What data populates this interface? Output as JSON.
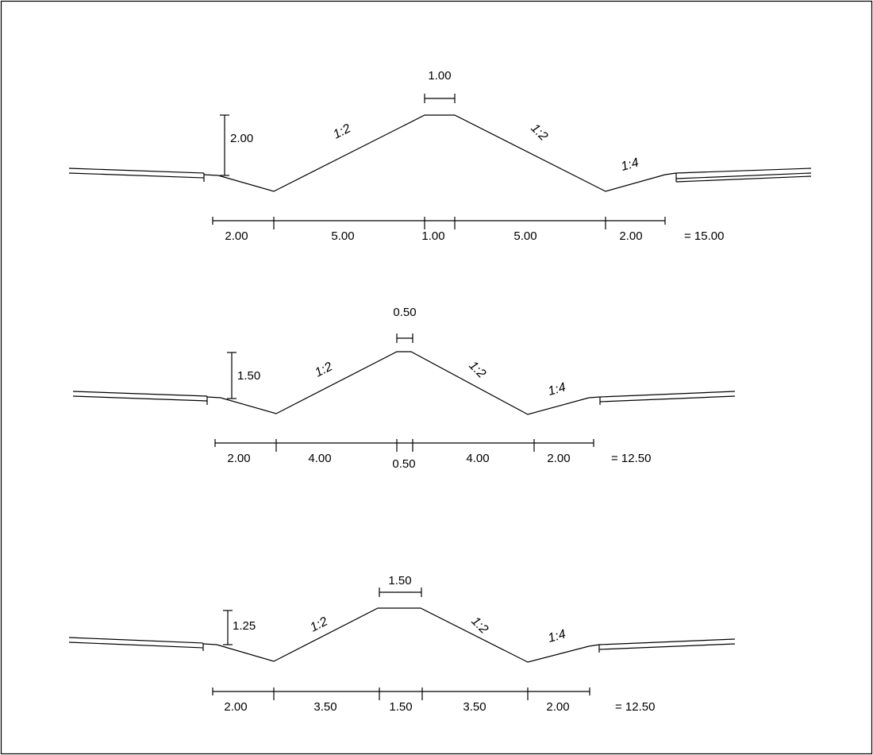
{
  "profiles": [
    {
      "crest_width": "1.00",
      "height": "2.00",
      "slope_left": "1:2",
      "slope_right": "1:2",
      "slope_outer": "1:4",
      "segments": [
        "2.00",
        "5.00",
        "1.00",
        "5.00",
        "2.00"
      ],
      "total": "= 15.00"
    },
    {
      "crest_width": "0.50",
      "height": "1.50",
      "slope_left": "1:2",
      "slope_right": "1:2",
      "slope_outer": "1:4",
      "segments": [
        "2.00",
        "4.00",
        "0.50",
        "4.00",
        "2.00"
      ],
      "total": "= 12.50"
    },
    {
      "crest_width": "1.50",
      "height": "1.25",
      "slope_left": "1:2",
      "slope_right": "1:2",
      "slope_outer": "1:4",
      "segments": [
        "2.00",
        "3.50",
        "1.50",
        "3.50",
        "2.00"
      ],
      "total": "= 12.50"
    }
  ]
}
